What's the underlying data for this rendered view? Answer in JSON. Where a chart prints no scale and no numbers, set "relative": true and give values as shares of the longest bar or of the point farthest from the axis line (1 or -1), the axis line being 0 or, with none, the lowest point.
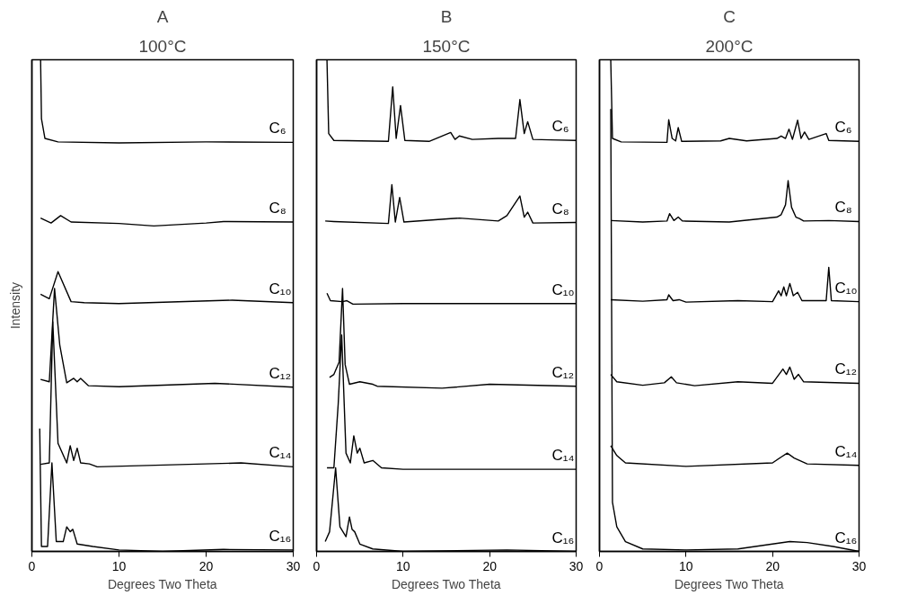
{
  "chart_data": [
    {
      "type": "line",
      "title": "A",
      "subtitle": "100°C",
      "xlabel": "Degrees Two Theta",
      "ylabel": "Intensity",
      "relative": true,
      "xlim": [
        0,
        30
      ],
      "xticks": [
        0,
        10,
        20,
        30
      ],
      "grid": false,
      "series": [
        {
          "name": "C₆",
          "color": "#000000",
          "x": [
            1.0,
            1.1,
            1.5,
            3,
            10,
            20,
            30
          ],
          "values": [
            1.0,
            0.88,
            0.84,
            0.833,
            0.831,
            0.833,
            0.832
          ]
        },
        {
          "name": "C₈",
          "color": "#000000",
          "x": [
            1.0,
            2.2,
            3.3,
            4.5,
            10,
            14,
            20,
            22,
            30
          ],
          "values": [
            0.678,
            0.668,
            0.683,
            0.67,
            0.667,
            0.662,
            0.668,
            0.671,
            0.67
          ]
        },
        {
          "name": "C₁₀",
          "color": "#000000",
          "x": [
            1.0,
            2.0,
            3.0,
            4.5,
            6,
            10,
            23,
            30
          ],
          "values": [
            0.523,
            0.514,
            0.569,
            0.508,
            0.506,
            0.504,
            0.511,
            0.506
          ]
        },
        {
          "name": "C₁₂",
          "color": "#000000",
          "x": [
            1.0,
            2.0,
            2.6,
            3.2,
            4.0,
            4.8,
            5.2,
            5.6,
            6.5,
            10,
            21,
            30
          ],
          "values": [
            0.35,
            0.345,
            0.535,
            0.42,
            0.343,
            0.352,
            0.345,
            0.352,
            0.337,
            0.335,
            0.342,
            0.334
          ]
        },
        {
          "name": "C₁₄",
          "color": "#000000",
          "x": [
            1.0,
            2.0,
            2.4,
            3.0,
            4.0,
            4.4,
            4.8,
            5.2,
            5.6,
            6.6,
            7.5,
            24,
            30
          ],
          "values": [
            0.177,
            0.18,
            0.467,
            0.22,
            0.18,
            0.215,
            0.185,
            0.21,
            0.18,
            0.178,
            0.172,
            0.18,
            0.172
          ]
        },
        {
          "name": "C₁₆",
          "color": "#000000",
          "x": [
            0.9,
            1.1,
            1.8,
            2.3,
            2.8,
            3.6,
            4.0,
            4.4,
            4.7,
            5.2,
            7,
            10,
            15,
            22,
            30
          ],
          "values": [
            0.25,
            0.01,
            0.01,
            0.18,
            0.02,
            0.02,
            0.05,
            0.04,
            0.045,
            0.015,
            0.01,
            0.003,
            0.0,
            0.004,
            0.003
          ]
        }
      ]
    },
    {
      "type": "line",
      "title": "B",
      "subtitle": "150°C",
      "xlabel": "Degrees Two Theta",
      "relative": true,
      "xlim": [
        0,
        30
      ],
      "xticks": [
        0,
        10,
        20,
        30
      ],
      "grid": false,
      "series": [
        {
          "name": "C₆",
          "color": "#000000",
          "x": [
            1.2,
            1.4,
            2,
            8.3,
            8.8,
            9.2,
            9.7,
            10.2,
            13,
            14.5,
            15.5,
            16,
            16.5,
            18,
            21,
            23,
            23.5,
            24,
            24.4,
            25,
            27,
            30
          ],
          "values": [
            1.0,
            0.85,
            0.836,
            0.834,
            0.945,
            0.84,
            0.907,
            0.836,
            0.834,
            0.845,
            0.852,
            0.838,
            0.845,
            0.838,
            0.84,
            0.84,
            0.919,
            0.85,
            0.874,
            0.838,
            0.837,
            0.836
          ]
        },
        {
          "name": "C₈",
          "color": "#000000",
          "x": [
            1.0,
            2,
            8.3,
            8.7,
            9.1,
            9.6,
            10.1,
            15.5,
            16.5,
            21,
            22,
            23.5,
            24,
            24.4,
            25,
            30
          ],
          "values": [
            0.672,
            0.671,
            0.667,
            0.746,
            0.67,
            0.72,
            0.67,
            0.677,
            0.678,
            0.672,
            0.683,
            0.723,
            0.68,
            0.69,
            0.668,
            0.669
          ]
        },
        {
          "name": "C₁₀",
          "color": "#000000",
          "x": [
            1.2,
            1.6,
            3.0,
            3.5,
            4.2,
            10,
            30
          ],
          "values": [
            0.525,
            0.51,
            0.508,
            0.51,
            0.503,
            0.504,
            0.504
          ]
        },
        {
          "name": "C₁₂",
          "color": "#000000",
          "x": [
            1.5,
            2.0,
            2.6,
            3.0,
            3.3,
            3.8,
            5,
            6.5,
            7,
            14.5,
            20,
            30
          ],
          "values": [
            0.354,
            0.36,
            0.385,
            0.535,
            0.38,
            0.34,
            0.345,
            0.34,
            0.336,
            0.332,
            0.34,
            0.336
          ]
        },
        {
          "name": "C₁₄",
          "color": "#000000",
          "x": [
            1.2,
            2.0,
            2.5,
            2.9,
            3.4,
            3.9,
            4.3,
            4.7,
            5.0,
            5.5,
            6.5,
            7.5,
            10,
            30
          ],
          "values": [
            0.17,
            0.17,
            0.3,
            0.44,
            0.2,
            0.18,
            0.235,
            0.2,
            0.21,
            0.18,
            0.185,
            0.17,
            0.167,
            0.167
          ]
        },
        {
          "name": "C₁₆",
          "color": "#000000",
          "x": [
            1.0,
            1.5,
            2.2,
            2.7,
            3.4,
            3.8,
            4.1,
            4.4,
            5,
            6.5,
            10,
            22,
            30
          ],
          "values": [
            0.02,
            0.04,
            0.17,
            0.05,
            0.03,
            0.07,
            0.045,
            0.04,
            0.015,
            0.005,
            0.0,
            0.003,
            0.0
          ]
        }
      ]
    },
    {
      "type": "line",
      "title": "C",
      "subtitle": "200°C",
      "xlabel": "Degrees Two Theta",
      "relative": true,
      "xlim": [
        0,
        30
      ],
      "xticks": [
        0,
        10,
        20,
        30
      ],
      "grid": false,
      "series": [
        {
          "name": "C₆",
          "color": "#000000",
          "x": [
            1.3,
            1.5,
            2.5,
            7.8,
            8.0,
            8.4,
            8.8,
            9.1,
            9.5,
            14,
            15,
            17,
            20.5,
            21,
            21.5,
            21.9,
            22.3,
            22.9,
            23.3,
            23.7,
            24.2,
            26.2,
            26.5,
            30
          ],
          "values": [
            1.0,
            0.84,
            0.833,
            0.832,
            0.878,
            0.84,
            0.835,
            0.862,
            0.834,
            0.835,
            0.84,
            0.835,
            0.84,
            0.845,
            0.84,
            0.859,
            0.838,
            0.877,
            0.84,
            0.853,
            0.838,
            0.85,
            0.836,
            0.834
          ]
        },
        {
          "name": "C₈",
          "color": "#000000",
          "x": [
            1.3,
            5,
            7.8,
            8.1,
            8.6,
            9.1,
            9.6,
            15,
            20.5,
            21,
            21.5,
            21.8,
            22.2,
            22.7,
            23.1,
            23.6,
            26.5,
            30
          ],
          "values": [
            0.673,
            0.67,
            0.672,
            0.687,
            0.673,
            0.68,
            0.672,
            0.67,
            0.68,
            0.685,
            0.705,
            0.754,
            0.7,
            0.68,
            0.677,
            0.672,
            0.673,
            0.671
          ]
        },
        {
          "name": "C₁₀",
          "color": "#000000",
          "x": [
            1.3,
            5,
            7.8,
            8.0,
            8.5,
            9.2,
            10,
            16,
            20,
            20.7,
            21.0,
            21.3,
            21.6,
            22,
            22.4,
            22.9,
            23.4,
            26.2,
            26.5,
            26.8,
            30
          ],
          "values": [
            0.512,
            0.509,
            0.512,
            0.522,
            0.51,
            0.512,
            0.507,
            0.51,
            0.508,
            0.53,
            0.52,
            0.538,
            0.52,
            0.545,
            0.52,
            0.527,
            0.51,
            0.51,
            0.578,
            0.51,
            0.508
          ]
        },
        {
          "name": "C₁₂",
          "color": "#000000",
          "x": [
            1.3,
            2,
            5,
            7.5,
            8.3,
            8.9,
            11,
            16,
            20,
            21.2,
            21.6,
            22.0,
            22.5,
            23,
            23.6,
            30
          ],
          "values": [
            0.36,
            0.345,
            0.338,
            0.343,
            0.355,
            0.343,
            0.337,
            0.345,
            0.342,
            0.371,
            0.36,
            0.375,
            0.35,
            0.36,
            0.345,
            0.342
          ]
        },
        {
          "name": "C₁₄",
          "color": "#000000",
          "x": [
            1.3,
            2,
            3,
            10,
            20,
            21,
            21.7,
            22.5,
            24,
            30
          ],
          "values": [
            0.215,
            0.195,
            0.18,
            0.173,
            0.18,
            0.192,
            0.2,
            0.19,
            0.178,
            0.175
          ]
        },
        {
          "name": "C₁₆",
          "color": "#000000",
          "x": [
            1.3,
            1.5,
            2,
            3,
            5,
            10,
            16,
            20,
            22,
            24,
            27,
            30
          ],
          "values": [
            0.9,
            0.1,
            0.05,
            0.02,
            0.005,
            0.003,
            0.005,
            0.015,
            0.02,
            0.018,
            0.01,
            0.0
          ]
        }
      ]
    }
  ]
}
